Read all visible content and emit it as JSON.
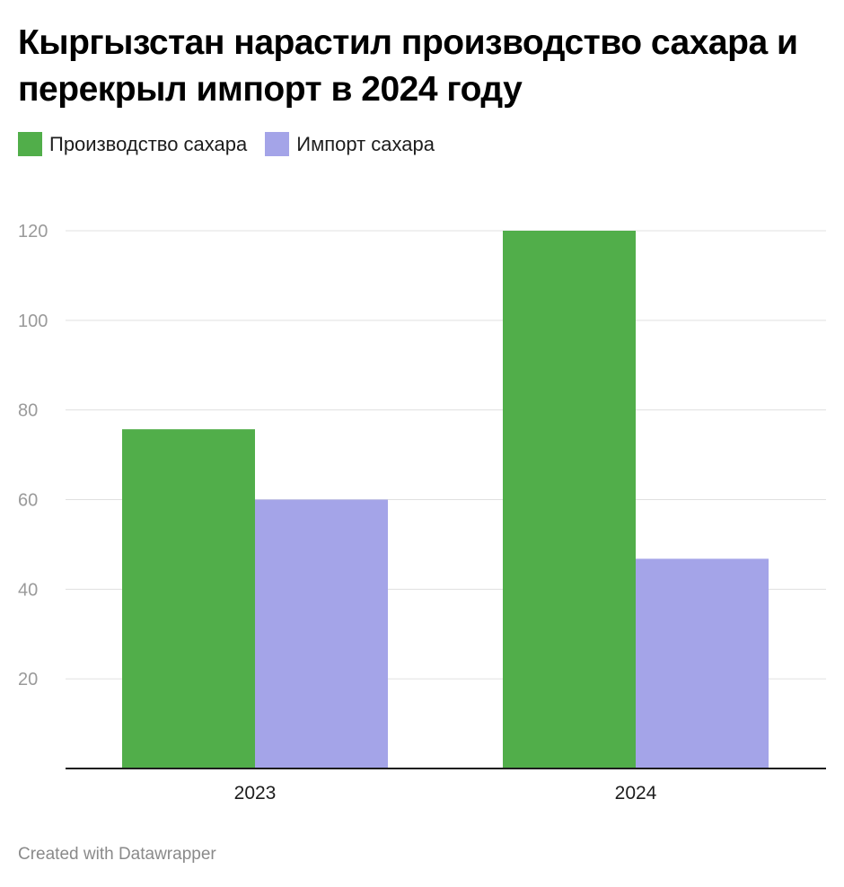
{
  "title": "Кыргызстан нарастил производство сахара и перекрыл импорт в 2024 году",
  "footer": "Created with Datawrapper",
  "colors": {
    "production": "#51ae4a",
    "import": "#a4a4e8",
    "grid": "#e0e0e0",
    "axis": "#1d1d1d",
    "tick_text": "#9a9a9a"
  },
  "chart_data": {
    "type": "bar",
    "categories": [
      "2023",
      "2024"
    ],
    "series": [
      {
        "name": "Производство сахара",
        "color": "#51ae4a",
        "values": [
          75.7,
          120
        ]
      },
      {
        "name": "Импорт сахара",
        "color": "#a4a4e8",
        "values": [
          60,
          46.8
        ]
      }
    ],
    "y_ticks": [
      "20",
      "40",
      "60",
      "80",
      "100",
      "120"
    ],
    "ylim": [
      0,
      120
    ],
    "grid": true,
    "legend_position": "top-left",
    "xlabel": "",
    "ylabel": ""
  }
}
